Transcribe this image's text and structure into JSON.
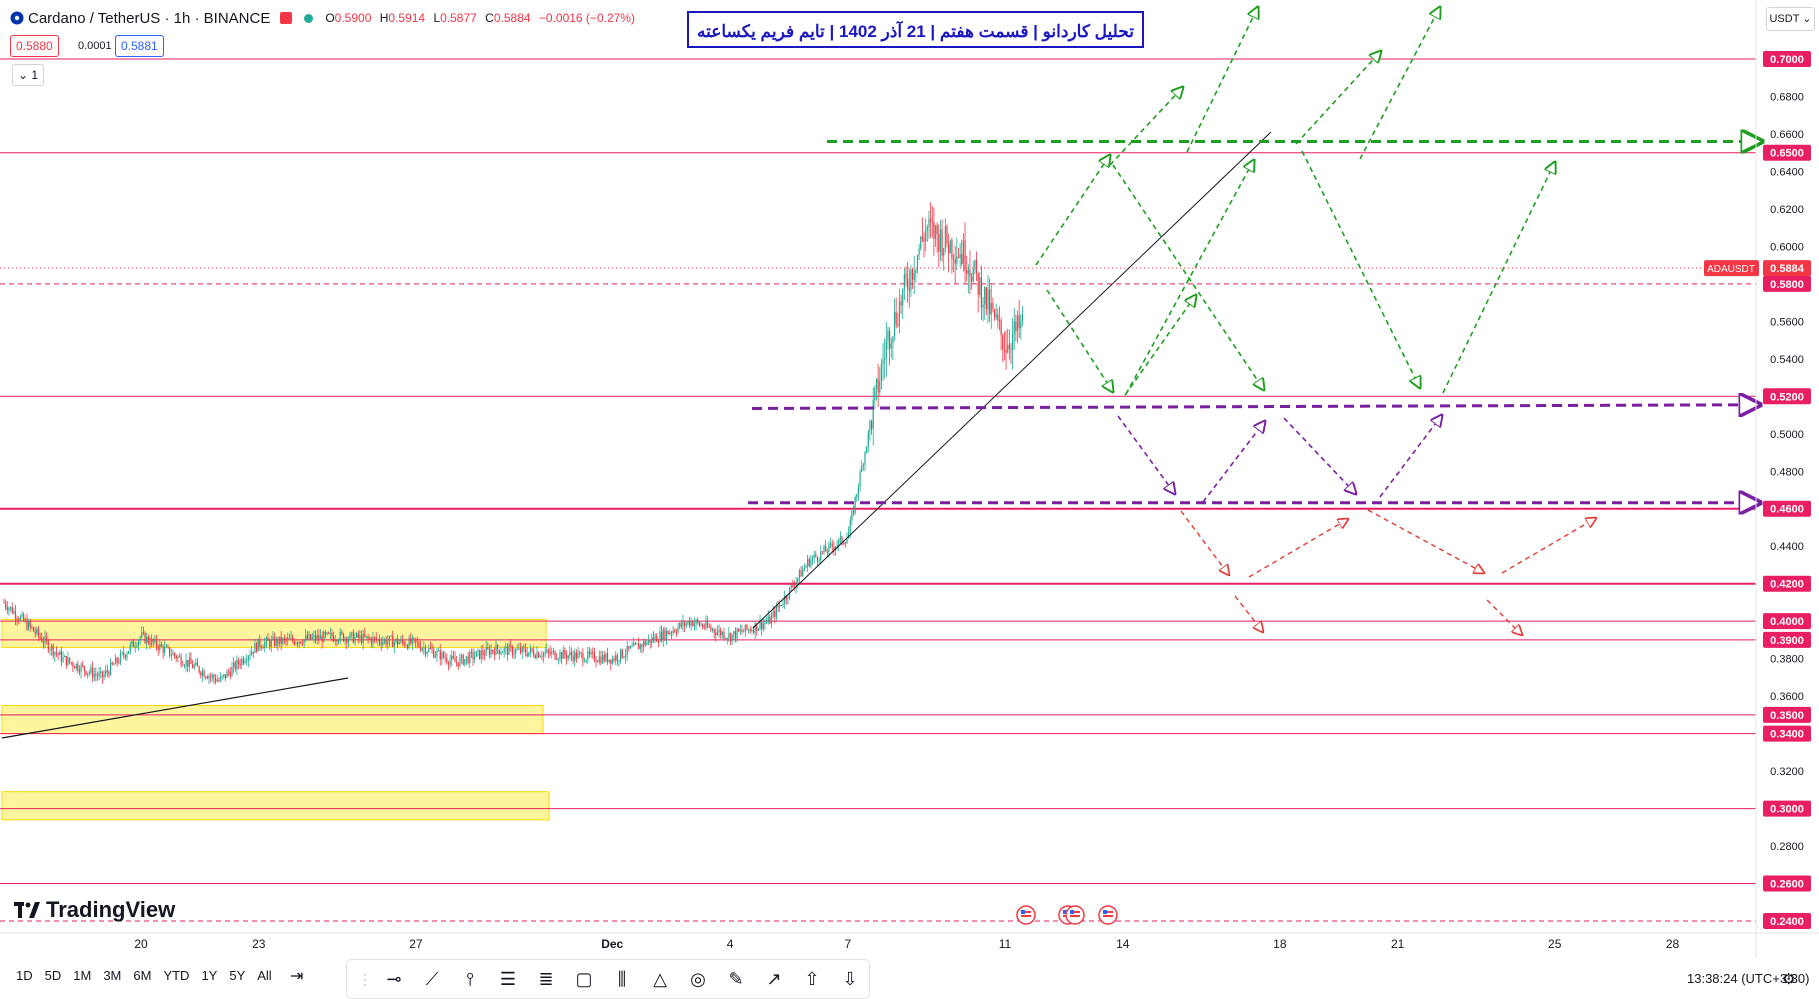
{
  "header": {
    "symbol": "Cardano / TetherUS · 1h · BINANCE",
    "ohlc": [
      {
        "k": "O",
        "v": "0.5900"
      },
      {
        "k": "H",
        "v": "0.5914"
      },
      {
        "k": "L",
        "v": "0.5877"
      },
      {
        "k": "C",
        "v": "0.5884"
      }
    ],
    "change": "−0.0016 (−0.27%)",
    "sell_price": "0.5880",
    "spread": "0.0001",
    "buy_price": "0.5881",
    "collapse_label": "1",
    "currency": "USDT"
  },
  "title_box": "تحلیل کاردانو | قسمت هفتم | 21 آذر 1402 | تایم فریم یکساعته",
  "logo_text": "TradingView",
  "colors": {
    "up": "#22ab94",
    "down": "#f23645",
    "level": "#e91e63",
    "green_arrow": "#1e9e1e",
    "purple_arrow": "#7b1fa2",
    "red_arrow": "#e53935",
    "zone": "#fff176",
    "title_border": "#1b18c2"
  },
  "chart_data": {
    "type": "candlestick",
    "title": "Cardano / TetherUS · 1h · BINANCE",
    "xlabel": "",
    "ylabel": "",
    "ylim": [
      0.232,
      0.712
    ],
    "x_tick_labels": [
      "20",
      "23",
      "27",
      "Dec",
      "4",
      "7",
      "11",
      "14",
      "18",
      "21",
      "25",
      "28"
    ],
    "y_tick_labels": [
      "0.6800",
      "0.6600",
      "0.6400",
      "0.6200",
      "0.6000",
      "0.5600",
      "0.5400",
      "0.5000",
      "0.4800",
      "0.4400",
      "0.3800",
      "0.3600",
      "0.3200",
      "0.2800"
    ],
    "levels": [
      0.7,
      0.65,
      0.58,
      0.52,
      0.46,
      0.42,
      0.4,
      0.39,
      0.35,
      0.34,
      0.3,
      0.26,
      0.24
    ],
    "level_labels": [
      "0.7000",
      "0.6500",
      "0.5800",
      "0.5200",
      "0.4600",
      "0.4200",
      "0.4000",
      "0.3900",
      "0.3500",
      "0.3400",
      "0.3000",
      "0.2600",
      "0.2400"
    ],
    "last_price": {
      "symbol": "ADAUSDT",
      "label": "0.5884",
      "value": 0.5884
    },
    "key_prices": [
      {
        "date": "Nov 17",
        "price": 0.41
      },
      {
        "date": "Nov 18",
        "price": 0.38
      },
      {
        "date": "Nov 19",
        "price": 0.37
      },
      {
        "date": "Nov 20",
        "price": 0.392
      },
      {
        "date": "Nov 22",
        "price": 0.368
      },
      {
        "date": "Nov 23",
        "price": 0.388
      },
      {
        "date": "Nov 25",
        "price": 0.392
      },
      {
        "date": "Nov 27",
        "price": 0.388
      },
      {
        "date": "Nov 28",
        "price": 0.378
      },
      {
        "date": "Nov 29",
        "price": 0.385
      },
      {
        "date": "Dec 1",
        "price": 0.38
      },
      {
        "date": "Dec 3",
        "price": 0.4
      },
      {
        "date": "Dec 4",
        "price": 0.392
      },
      {
        "date": "Dec 5",
        "price": 0.4
      },
      {
        "date": "Dec 6",
        "price": 0.432
      },
      {
        "date": "Dec 7",
        "price": 0.445
      },
      {
        "date": "Dec 8",
        "price": 0.55
      },
      {
        "date": "Dec 9",
        "price": 0.61
      },
      {
        "date": "Dec 10",
        "price": 0.595
      },
      {
        "date": "Dec 11",
        "price": 0.548
      },
      {
        "date": "Dec 12",
        "price": 0.57
      },
      {
        "date": "Dec 12",
        "price": 0.5884
      }
    ],
    "support_zones": [
      {
        "low": 0.386,
        "high": 0.401
      },
      {
        "low": 0.34,
        "high": 0.355
      },
      {
        "low": 0.294,
        "high": 0.309
      }
    ]
  },
  "bottom": {
    "ranges": [
      "1D",
      "5D",
      "1M",
      "3M",
      "6M",
      "YTD",
      "1Y",
      "5Y",
      "All"
    ],
    "goto_icon": "goto-date-icon",
    "tools": [
      "drag-handle-icon",
      "horizontal-ray-icon",
      "trendline-icon",
      "vertical-line-icon",
      "parallel-channel-icon",
      "fib-retracement-icon",
      "rectangle-icon",
      "long-position-icon",
      "pattern-icon",
      "circle-icon",
      "brush-icon",
      "arrow-marker-icon",
      "arrow-up-icon",
      "arrow-down-icon"
    ],
    "clock": "13:38:24 (UTC+3:30)"
  }
}
